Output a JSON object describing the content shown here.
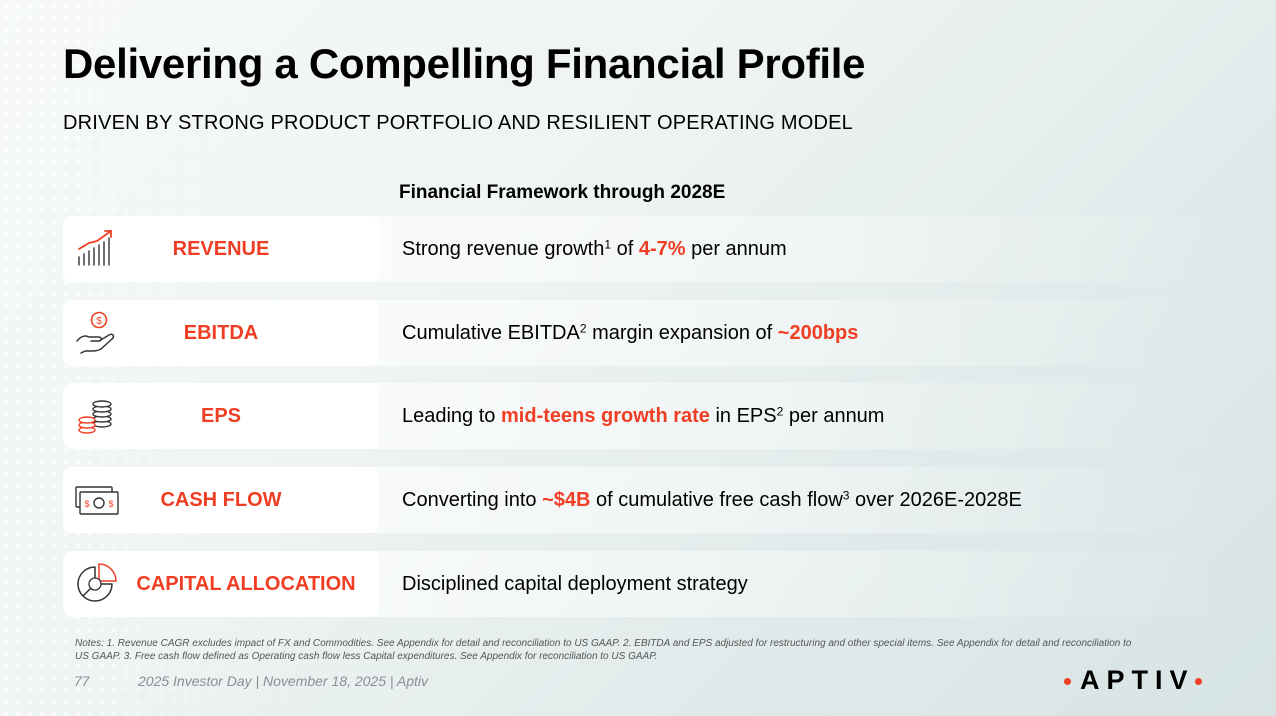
{
  "title": "Delivering a Compelling Financial Profile",
  "subtitle": "DRIVEN BY STRONG PRODUCT PORTFOLIO AND RESILIENT OPERATING MODEL",
  "framework_heading": "Financial Framework through 2028E",
  "accent_color": "#ef3e23",
  "rows": [
    {
      "icon": "growth-chart-icon",
      "label": "REVENUE",
      "desc": {
        "t1": "Strong revenue growth",
        "s1": "1",
        "t2": " of ",
        "hl": "4-7%",
        "t3": " per annum"
      }
    },
    {
      "icon": "hand-dollar-icon",
      "label": "EBITDA",
      "desc": {
        "t1": "Cumulative EBITDA",
        "s1": "2",
        "t2": " margin expansion of ",
        "hl": "~200bps"
      }
    },
    {
      "icon": "coin-stack-icon",
      "label": "EPS",
      "desc": {
        "t1": "Leading to ",
        "hl": "mid-teens growth rate",
        "t2": " in EPS",
        "s1": "2",
        "t3": " per annum"
      }
    },
    {
      "icon": "cash-bills-icon",
      "label": "CASH FLOW",
      "desc": {
        "t1": "Converting into ",
        "hl": "~$4B",
        "t2": " of cumulative free cash flow",
        "s1": "3",
        "t3": " over 2026E-2028E"
      }
    },
    {
      "icon": "pie-chart-icon",
      "label": "CAPITAL ALLOCATION",
      "desc": {
        "t1": "Disciplined capital deployment strategy"
      }
    }
  ],
  "notes": "Notes: 1. Revenue CAGR excludes impact of FX and Commodities. See Appendix for detail and reconciliation to US GAAP. 2. EBITDA and EPS adjusted for restructuring and other special items. See Appendix for detail and reconciliation to US GAAP. 3. Free cash flow defined as Operating cash flow less Capital expenditures. See Appendix for reconciliation to US GAAP.",
  "page_number": "77",
  "footer": "2025 Investor Day | November 18, 2025 | Aptiv",
  "logo_text": "APTIV"
}
